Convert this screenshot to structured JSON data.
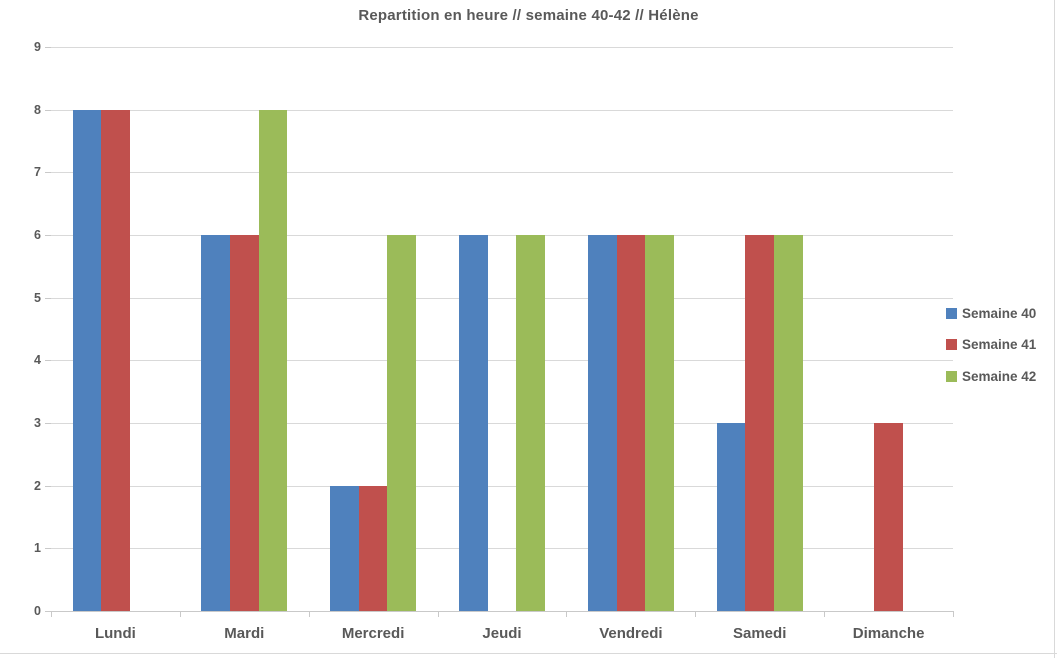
{
  "chart_data": {
    "type": "bar",
    "title": "Repartition en heure // semaine 40-42 // Hélène",
    "categories": [
      "Lundi",
      "Mardi",
      "Mercredi",
      "Jeudi",
      "Vendredi",
      "Samedi",
      "Dimanche"
    ],
    "series": [
      {
        "name": "Semaine 40",
        "color": "#4F81BD",
        "values": [
          8,
          6,
          2,
          6,
          6,
          3,
          0
        ]
      },
      {
        "name": "Semaine 41",
        "color": "#C0504D",
        "values": [
          8,
          6,
          2,
          0,
          6,
          6,
          3
        ]
      },
      {
        "name": "Semaine 42",
        "color": "#9BBB59",
        "values": [
          0,
          8,
          6,
          6,
          6,
          6,
          0
        ]
      }
    ],
    "yticks": [
      "0",
      "1",
      "2",
      "3",
      "4",
      "5",
      "6",
      "7",
      "8",
      "9"
    ],
    "ylim": [
      0,
      9
    ],
    "ytick_interval": 1,
    "grid": true,
    "legend_position": "right",
    "xlabel": "",
    "ylabel": ""
  },
  "colors": {
    "text": "#595959",
    "gridline": "#D9D9D9",
    "axis": "#C9C9C9",
    "background": "#FFFFFF"
  }
}
